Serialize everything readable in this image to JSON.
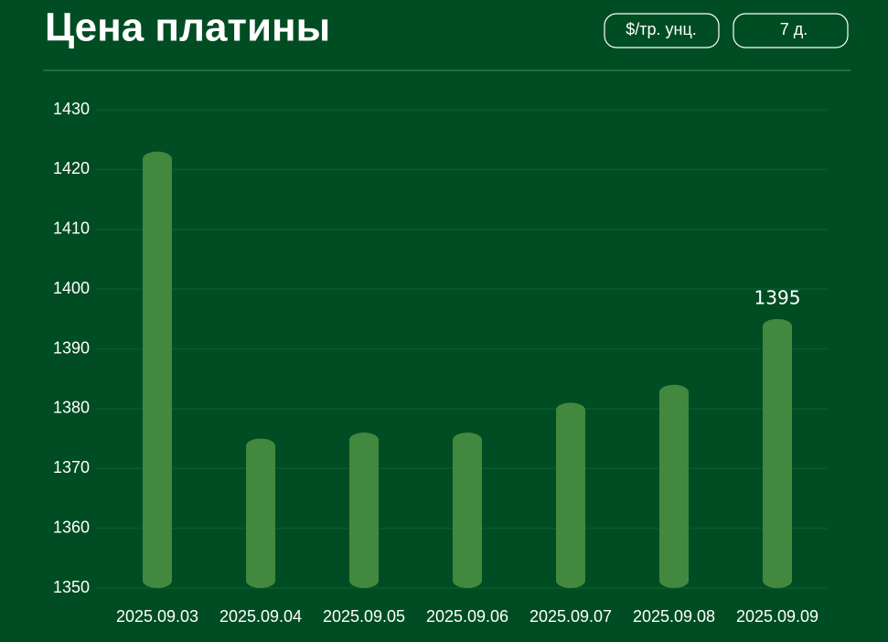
{
  "controls": [
    "$/тр. унц.",
    "7 д."
  ],
  "chart_data": {
    "type": "bar",
    "title": "Цена платины",
    "categories": [
      "2025.09.03",
      "2025.09.04",
      "2025.09.05",
      "2025.09.06",
      "2025.09.07",
      "2025.09.08",
      "2025.09.09"
    ],
    "values": [
      1423,
      1375,
      1376,
      1376,
      1381,
      1384,
      1395
    ],
    "value_labels": [
      null,
      null,
      null,
      null,
      null,
      null,
      "1395"
    ],
    "color": "#43883f",
    "ylim": [
      1350,
      1430
    ],
    "yticks": [
      1350,
      1360,
      1370,
      1380,
      1390,
      1400,
      1410,
      1420,
      1430
    ],
    "grid": true
  }
}
